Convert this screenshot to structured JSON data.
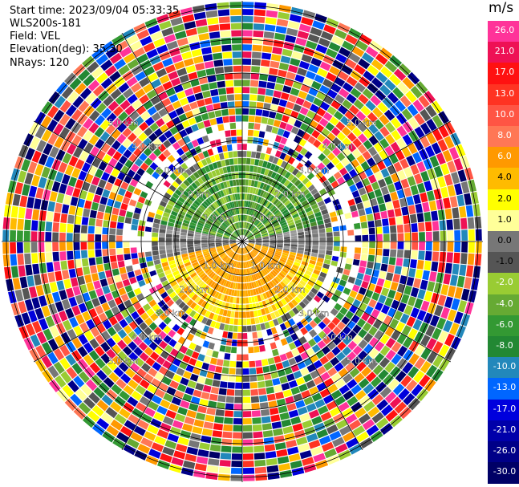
{
  "header": {
    "start_time": "Start time: 2023/09/04 05:33:35",
    "instrument": "WLS200s-181",
    "field": "Field: VEL",
    "elevation": "Elevation(deg): 35.30",
    "nrays": "NRays: 120"
  },
  "colorbar": {
    "unit": "m/s",
    "ticks": [
      "26.0",
      "21.0",
      "17.0",
      "13.0",
      "10.0",
      "8.0",
      "6.0",
      "4.0",
      "2.0",
      "1.0",
      "0.0",
      "-1.0",
      "-2.0",
      "-4.0",
      "-6.0",
      "-8.0",
      "-10.0",
      "-13.0",
      "-17.0",
      "-21.0",
      "-26.0",
      "-30.0"
    ],
    "colors": [
      "#ff3399",
      "#ee1155",
      "#ff1111",
      "#ff3322",
      "#ff5544",
      "#ff7755",
      "#ff9900",
      "#ffbb00",
      "#ffff00",
      "#ffff99",
      "#777777",
      "#555555",
      "#99cc33",
      "#66aa33",
      "#339933",
      "#228833",
      "#2288bb",
      "#0066ff",
      "#0000dd",
      "#0000aa",
      "#000088",
      "#000066"
    ]
  },
  "range_rings": {
    "labels": [
      "1.0 km",
      "2.0 km",
      "3.0 km",
      "4.0 km",
      "5.0 km"
    ]
  },
  "chart_data": {
    "type": "heatmap",
    "projection": "polar PPI",
    "field": "VEL",
    "units": "m/s",
    "nrays": 120,
    "rings_km": [
      1,
      2,
      3,
      4,
      5
    ],
    "color_scale_min": -30.0,
    "color_scale_max": 26.0,
    "regions": [
      {
        "name": "northern near-field",
        "velocity_range": [
          -6.0,
          -1.0
        ]
      },
      {
        "name": "east-west band",
        "velocity_range": [
          -1.0,
          0.0
        ]
      },
      {
        "name": "southern near-field",
        "velocity_range": [
          2.0,
          8.0
        ]
      },
      {
        "name": "far-field beyond ~2.5 km",
        "velocity_range": [
          -30.0,
          26.0
        ]
      }
    ]
  }
}
